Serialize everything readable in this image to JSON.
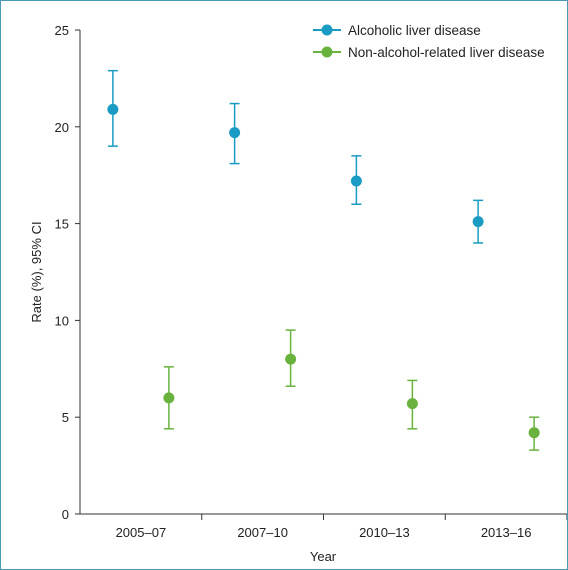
{
  "chart_data": {
    "type": "scatter",
    "categories": [
      "2005–07",
      "2007–10",
      "2010–13",
      "2013–16"
    ],
    "xlabel": "Year",
    "ylabel": "Rate (%), 95% CI",
    "ylim": [
      0,
      25
    ],
    "yticks": [
      "0",
      "5",
      "10",
      "15",
      "20",
      "25"
    ],
    "grid": false,
    "legend_position": "top-right",
    "series": [
      {
        "name": "Alcoholic liver disease",
        "color": "#1a9bc4",
        "values": [
          20.9,
          19.7,
          17.2,
          15.1
        ],
        "ci_low": [
          19.0,
          18.1,
          16.0,
          14.0
        ],
        "ci_high": [
          22.9,
          21.2,
          18.5,
          16.2
        ]
      },
      {
        "name": "Non-alcohol-related liver disease",
        "color": "#6ab23e",
        "values": [
          6.0,
          8.0,
          5.7,
          4.2
        ],
        "ci_low": [
          4.4,
          6.6,
          4.4,
          3.3
        ],
        "ci_high": [
          7.6,
          9.5,
          6.9,
          5.0
        ]
      }
    ]
  }
}
